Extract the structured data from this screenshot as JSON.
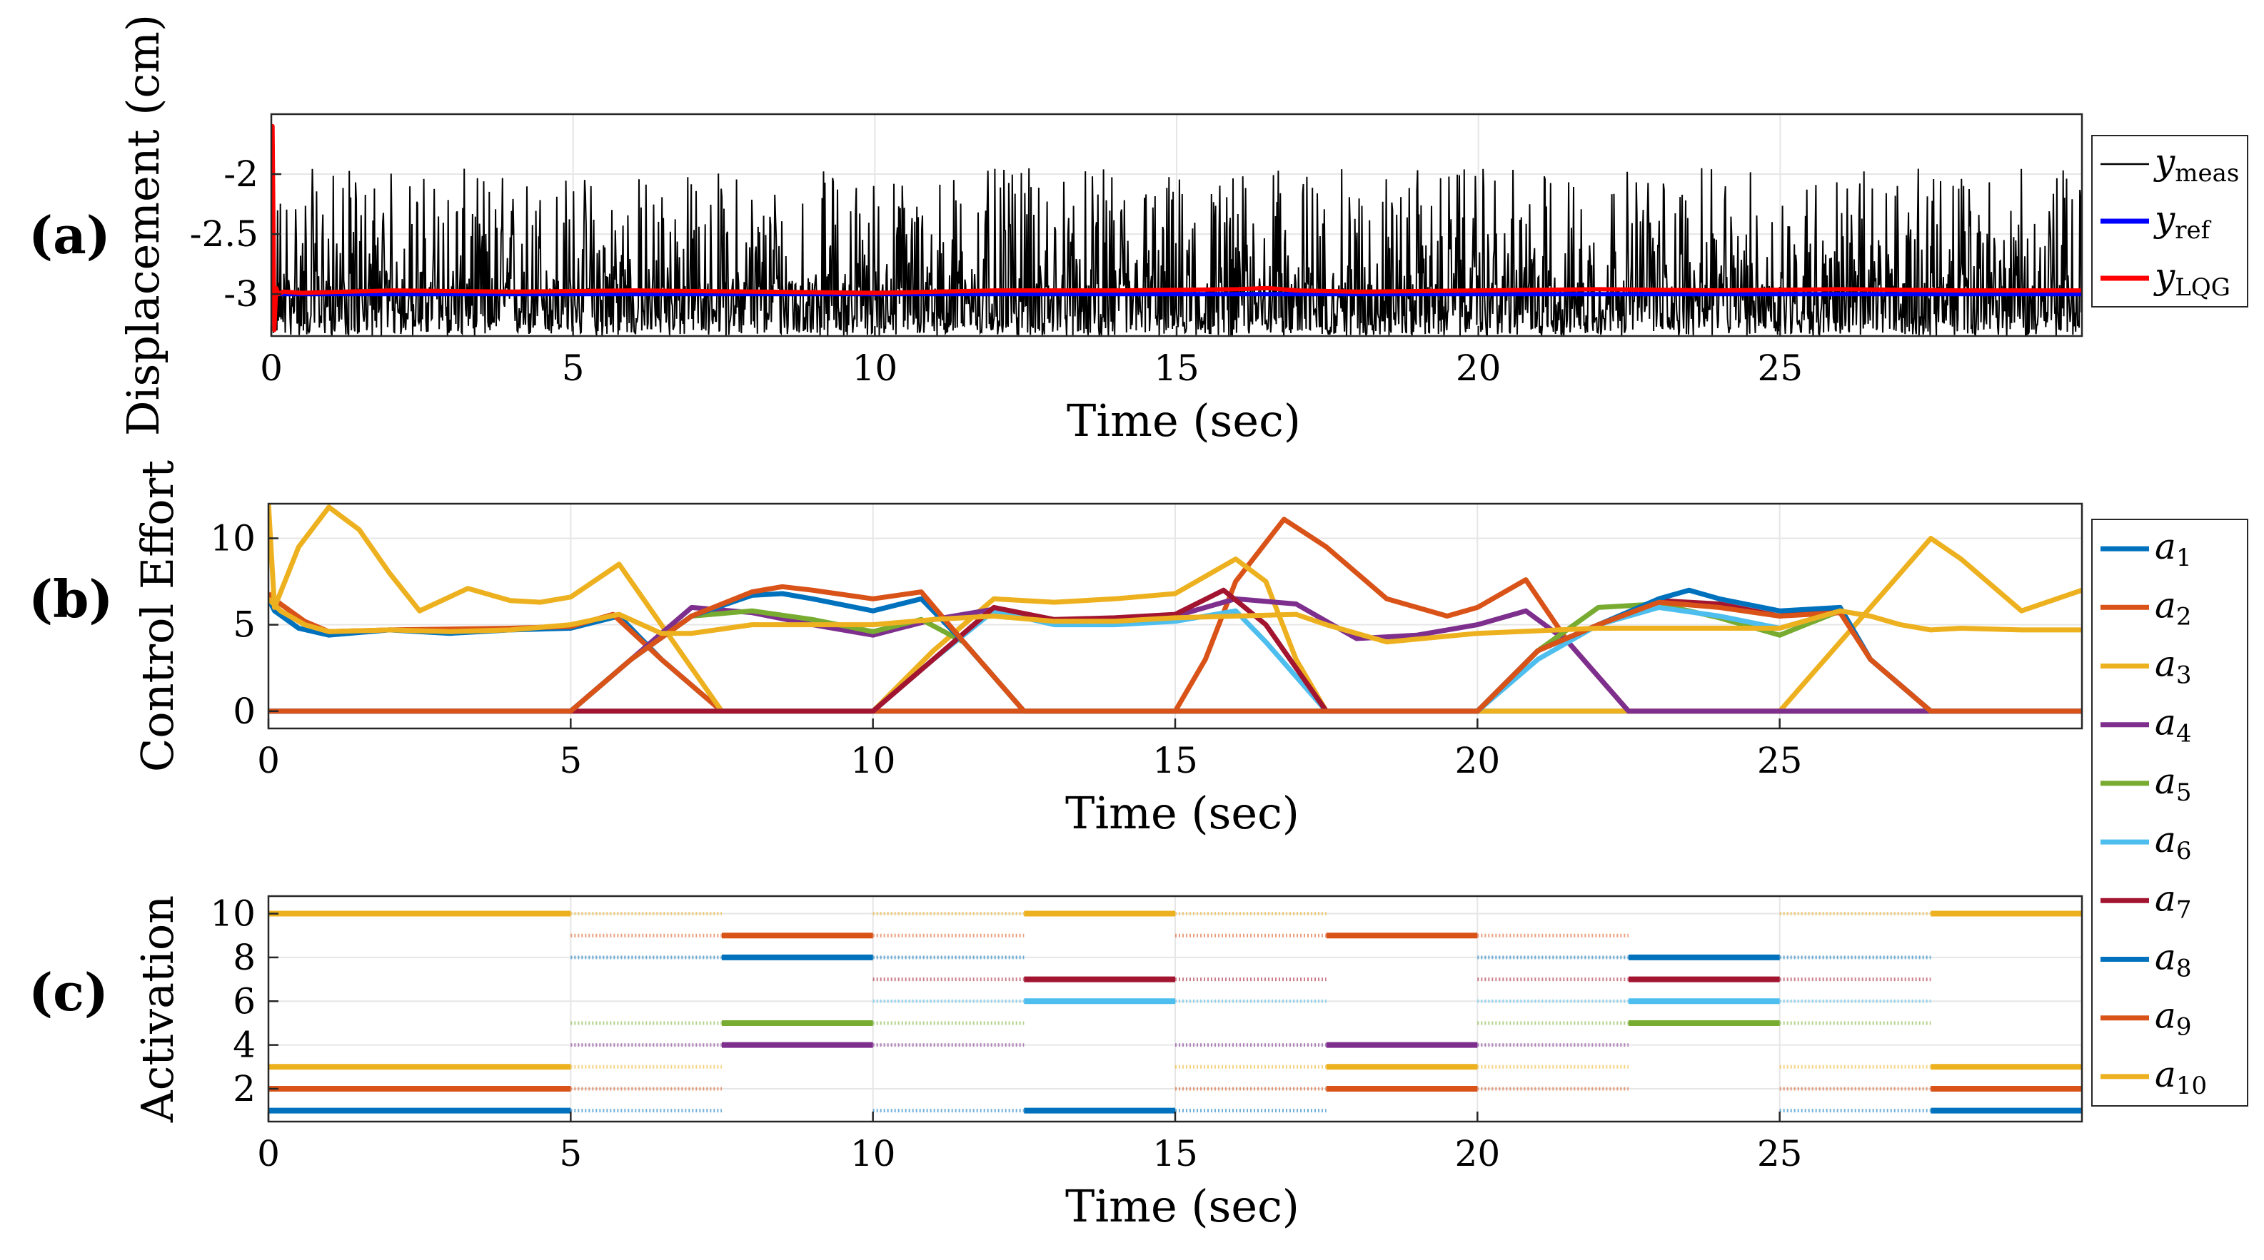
{
  "chart_data": [
    {
      "panel": "(a)",
      "type": "line",
      "xlabel": "Time (sec)",
      "ylabel": "Displacement (cm)",
      "xlim": [
        0,
        30
      ],
      "ylim": [
        -3.35,
        -1.5
      ],
      "xticks": [
        0,
        5,
        10,
        15,
        20,
        25
      ],
      "yticks": [
        -2,
        -2.5,
        -3
      ],
      "ytick_labels": [
        "-2",
        "-2.5",
        "-3"
      ],
      "grid": true,
      "legend_position": "right",
      "series": [
        {
          "name": "y",
          "sub": "meas",
          "color": "#000000",
          "style": "noisy",
          "mean": -3.0,
          "spread_down": 0.35,
          "spread_up": 1.05
        },
        {
          "name": "y",
          "sub": "ref",
          "color": "#0000ff",
          "x": [
            0,
            30
          ],
          "y": [
            -3.0,
            -3.0
          ]
        },
        {
          "name": "y",
          "sub": "LQG",
          "color": "#ff0000",
          "x": [
            0,
            0.02,
            0.05,
            0.08,
            0.12,
            0.2,
            0.5,
            2,
            4,
            6,
            8,
            10,
            12,
            14,
            16,
            16.5,
            17,
            18,
            20,
            22,
            24,
            26,
            28,
            30
          ],
          "y": [
            -3.0,
            -1.6,
            -3.3,
            -2.95,
            -3.0,
            -2.98,
            -2.99,
            -2.97,
            -2.98,
            -2.97,
            -2.98,
            -2.99,
            -2.97,
            -2.97,
            -2.96,
            -2.95,
            -2.97,
            -2.98,
            -2.97,
            -2.96,
            -2.97,
            -2.96,
            -2.97,
            -2.97
          ]
        }
      ]
    },
    {
      "panel": "(b)",
      "type": "line",
      "xlabel": "Time (sec)",
      "ylabel": "Control Effort",
      "xlim": [
        0,
        30
      ],
      "ylim": [
        -1,
        12
      ],
      "xticks": [
        0,
        5,
        10,
        15,
        20,
        25
      ],
      "yticks": [
        0,
        5,
        10
      ],
      "ytick_labels": [
        "0",
        "5",
        "10"
      ],
      "grid": true,
      "legend_position": "right",
      "series": [
        {
          "name": "a",
          "sub": "1",
          "color": "#0072bd",
          "x": [
            0,
            0.1,
            0.5,
            1,
            2,
            3,
            4,
            5,
            5.8,
            6.5,
            7.5,
            10,
            12.5,
            15,
            17.5,
            20,
            22.5,
            25,
            26.2,
            27.5,
            30
          ],
          "y": [
            6.5,
            5.8,
            4.8,
            4.4,
            4.7,
            4.5,
            4.7,
            4.8,
            5.5,
            3.0,
            0,
            0,
            0,
            0,
            0,
            0,
            0,
            0,
            0,
            0,
            0
          ]
        },
        {
          "name": "a",
          "sub": "2",
          "color": "#d95319",
          "x": [
            0,
            0.2,
            0.6,
            1,
            2,
            4,
            5,
            5.7,
            6.5,
            7.5,
            10,
            12.5,
            15,
            15.5,
            16,
            16.8,
            17.5,
            18.5,
            19.5,
            20,
            20.8,
            21.5,
            22.5,
            25,
            30
          ],
          "y": [
            6.8,
            6.2,
            5.2,
            4.6,
            4.7,
            4.8,
            4.9,
            5.6,
            3.0,
            0,
            0,
            0,
            0,
            3.0,
            7.5,
            11.1,
            9.5,
            6.5,
            5.5,
            6.0,
            7.6,
            4.0,
            0,
            0,
            0
          ]
        },
        {
          "name": "a",
          "sub": "3",
          "color": "#edb120",
          "x": [
            0,
            0.1,
            0.5,
            1,
            1.5,
            2,
            2.5,
            3.3,
            4,
            4.5,
            5,
            5.8,
            6.5,
            7.5,
            10,
            11,
            12,
            13,
            14,
            15,
            16,
            16.5,
            17,
            17.5,
            20,
            25,
            25.5,
            26.5,
            27.5,
            28,
            29,
            30
          ],
          "y": [
            12,
            6.0,
            9.5,
            11.8,
            10.5,
            8.0,
            5.8,
            7.1,
            6.4,
            6.3,
            6.6,
            8.5,
            5.0,
            0,
            0,
            3.5,
            6.5,
            6.3,
            6.5,
            6.8,
            8.8,
            7.5,
            3.0,
            0,
            0,
            0,
            2.0,
            6.0,
            10.0,
            8.8,
            5.8,
            7.0
          ]
        },
        {
          "name": "a",
          "sub": "4",
          "color": "#7e2f8e",
          "x": [
            0,
            5,
            6,
            7,
            8,
            9,
            10,
            11,
            12,
            13,
            14,
            15,
            16,
            17,
            18,
            19,
            20,
            20.8,
            21.5,
            22.5,
            30
          ],
          "y": [
            0,
            0,
            3.0,
            6.0,
            5.7,
            5.0,
            4.4,
            5.3,
            5.9,
            5.2,
            5.2,
            5.5,
            6.5,
            6.2,
            4.2,
            4.4,
            5.0,
            5.8,
            4.0,
            0,
            0
          ]
        },
        {
          "name": "a",
          "sub": "5",
          "color": "#77ac30",
          "x": [
            0,
            5,
            6,
            7,
            8,
            9,
            10,
            10.8,
            11.5,
            12.5,
            20,
            21,
            22,
            23,
            24,
            25,
            26,
            26.5,
            27.5,
            30
          ],
          "y": [
            0,
            0,
            3.0,
            5.5,
            5.8,
            5.3,
            4.6,
            5.3,
            4.0,
            0,
            0,
            3.5,
            6.0,
            6.2,
            5.4,
            4.4,
            5.8,
            3.0,
            0,
            0
          ]
        },
        {
          "name": "a",
          "sub": "6",
          "color": "#4dbeee",
          "x": [
            0,
            10,
            11,
            12,
            13,
            14,
            15,
            16,
            16.5,
            17.5,
            20,
            21,
            22,
            23,
            24,
            25,
            26,
            26.5,
            27.5,
            30
          ],
          "y": [
            0,
            0,
            3.0,
            5.8,
            5.0,
            5.0,
            5.2,
            5.8,
            4.0,
            0,
            0,
            3.0,
            5.0,
            6.0,
            5.5,
            4.8,
            5.8,
            3.0,
            0,
            0
          ]
        },
        {
          "name": "a",
          "sub": "7",
          "color": "#a2142f",
          "x": [
            0,
            5,
            7.5,
            10,
            11,
            12,
            13,
            14,
            15,
            15.8,
            16.5,
            17.5,
            20,
            21,
            22,
            23,
            24,
            25,
            26,
            26.5,
            27.5,
            30
          ],
          "y": [
            0,
            0,
            0,
            0,
            3.0,
            6.0,
            5.3,
            5.4,
            5.6,
            7.0,
            5.0,
            0,
            0,
            3.5,
            5.0,
            6.4,
            6.2,
            5.5,
            6.0,
            3.0,
            0,
            0
          ]
        },
        {
          "name": "a",
          "sub": "8",
          "color": "#0072bd",
          "x": [
            0,
            5,
            6,
            7,
            8,
            8.5,
            9,
            10,
            10.8,
            11.5,
            12.5,
            15,
            20,
            21,
            22,
            23,
            23.5,
            24,
            25,
            26,
            26.5,
            27.5,
            30
          ],
          "y": [
            0,
            0,
            3.0,
            5.5,
            6.7,
            6.8,
            6.5,
            5.8,
            6.5,
            4.0,
            0,
            0,
            0,
            3.5,
            5.0,
            6.5,
            7.0,
            6.5,
            5.8,
            6.0,
            3.0,
            0,
            0
          ]
        },
        {
          "name": "a",
          "sub": "9",
          "color": "#d95319",
          "x": [
            0,
            5,
            6,
            7,
            8,
            8.5,
            9,
            10,
            10.8,
            11.5,
            12.5,
            20,
            21,
            22,
            23,
            24,
            25,
            26,
            26.5,
            27.5,
            30
          ],
          "y": [
            0,
            0,
            3.0,
            5.5,
            6.9,
            7.2,
            7.0,
            6.5,
            6.9,
            4.0,
            0,
            0,
            3.5,
            5.0,
            6.3,
            6.0,
            5.5,
            5.7,
            3.0,
            0,
            0
          ]
        },
        {
          "name": "a",
          "sub": "10",
          "color": "#edb120",
          "x": [
            0,
            0.2,
            0.6,
            1,
            2,
            3,
            4,
            5,
            5.8,
            6.5,
            7,
            8,
            10,
            11,
            12,
            13,
            14,
            15,
            16,
            17,
            17.5,
            18.5,
            20,
            22,
            24,
            25,
            26,
            26.5,
            27,
            27.5,
            28,
            29,
            30
          ],
          "y": [
            6.5,
            5.8,
            5.0,
            4.6,
            4.7,
            4.6,
            4.7,
            5.0,
            5.6,
            4.5,
            4.5,
            5.0,
            5.0,
            5.3,
            5.5,
            5.2,
            5.2,
            5.4,
            5.5,
            5.6,
            5.0,
            4.0,
            4.5,
            4.8,
            4.8,
            4.8,
            5.8,
            5.5,
            5.0,
            4.7,
            4.8,
            4.7,
            4.7
          ]
        }
      ]
    },
    {
      "panel": "(c)",
      "type": "line",
      "xlabel": "Time (sec)",
      "ylabel": "Activation",
      "xlim": [
        0,
        30
      ],
      "ylim": [
        0.5,
        10.8
      ],
      "xticks": [
        0,
        5,
        10,
        15,
        20,
        25
      ],
      "yticks": [
        2,
        4,
        6,
        8,
        10
      ],
      "ytick_labels": [
        "2",
        "4",
        "6",
        "8",
        "10"
      ],
      "grid": true,
      "segments": [
        {
          "level": 10,
          "color": "#edb120",
          "solid": [
            [
              0,
              5
            ],
            [
              12.5,
              15
            ],
            [
              27.5,
              30
            ]
          ],
          "dotted": [
            [
              5,
              7.5
            ],
            [
              10,
              12.5
            ],
            [
              15,
              17.5
            ],
            [
              25,
              27.5
            ]
          ]
        },
        {
          "level": 9,
          "color": "#d95319",
          "solid": [
            [
              7.5,
              10
            ],
            [
              17.5,
              20
            ]
          ],
          "dotted": [
            [
              5,
              7.5
            ],
            [
              10,
              12.5
            ],
            [
              15,
              17.5
            ],
            [
              20,
              22.5
            ]
          ]
        },
        {
          "level": 8,
          "color": "#0072bd",
          "solid": [
            [
              7.5,
              10
            ],
            [
              22.5,
              25
            ]
          ],
          "dotted": [
            [
              5,
              7.5
            ],
            [
              10,
              12.5
            ],
            [
              20,
              22.5
            ],
            [
              25,
              27.5
            ]
          ]
        },
        {
          "level": 7,
          "color": "#a2142f",
          "solid": [
            [
              12.5,
              15
            ],
            [
              22.5,
              25
            ]
          ],
          "dotted": [
            [
              10,
              12.5
            ],
            [
              15,
              17.5
            ],
            [
              20,
              22.5
            ],
            [
              25,
              27.5
            ]
          ]
        },
        {
          "level": 6,
          "color": "#4dbeee",
          "solid": [
            [
              12.5,
              15
            ],
            [
              22.5,
              25
            ]
          ],
          "dotted": [
            [
              10,
              12.5
            ],
            [
              15,
              17.5
            ],
            [
              20,
              22.5
            ],
            [
              25,
              27.5
            ]
          ]
        },
        {
          "level": 5,
          "color": "#77ac30",
          "solid": [
            [
              7.5,
              10
            ],
            [
              22.5,
              25
            ]
          ],
          "dotted": [
            [
              5,
              7.5
            ],
            [
              10,
              12.5
            ],
            [
              20,
              22.5
            ],
            [
              25,
              27.5
            ]
          ]
        },
        {
          "level": 4,
          "color": "#7e2f8e",
          "solid": [
            [
              7.5,
              10
            ],
            [
              17.5,
              20
            ]
          ],
          "dotted": [
            [
              5,
              7.5
            ],
            [
              10,
              12.5
            ],
            [
              15,
              17.5
            ],
            [
              20,
              22.5
            ]
          ]
        },
        {
          "level": 3,
          "color": "#edb120",
          "solid": [
            [
              0,
              5
            ],
            [
              17.5,
              20
            ],
            [
              27.5,
              30
            ]
          ],
          "dotted": [
            [
              5,
              7.5
            ],
            [
              15,
              17.5
            ],
            [
              20,
              22.5
            ],
            [
              25,
              27.5
            ]
          ]
        },
        {
          "level": 2,
          "color": "#d95319",
          "solid": [
            [
              0,
              5
            ],
            [
              17.5,
              20
            ],
            [
              27.5,
              30
            ]
          ],
          "dotted": [
            [
              5,
              7.5
            ],
            [
              15,
              17.5
            ],
            [
              20,
              22.5
            ],
            [
              25,
              27.5
            ]
          ]
        },
        {
          "level": 1,
          "color": "#0072bd",
          "solid": [
            [
              0,
              5
            ],
            [
              12.5,
              15
            ],
            [
              27.5,
              30
            ]
          ],
          "dotted": [
            [
              5,
              7.5
            ],
            [
              10,
              12.5
            ],
            [
              15,
              17.5
            ],
            [
              25,
              27.5
            ]
          ]
        }
      ]
    }
  ]
}
